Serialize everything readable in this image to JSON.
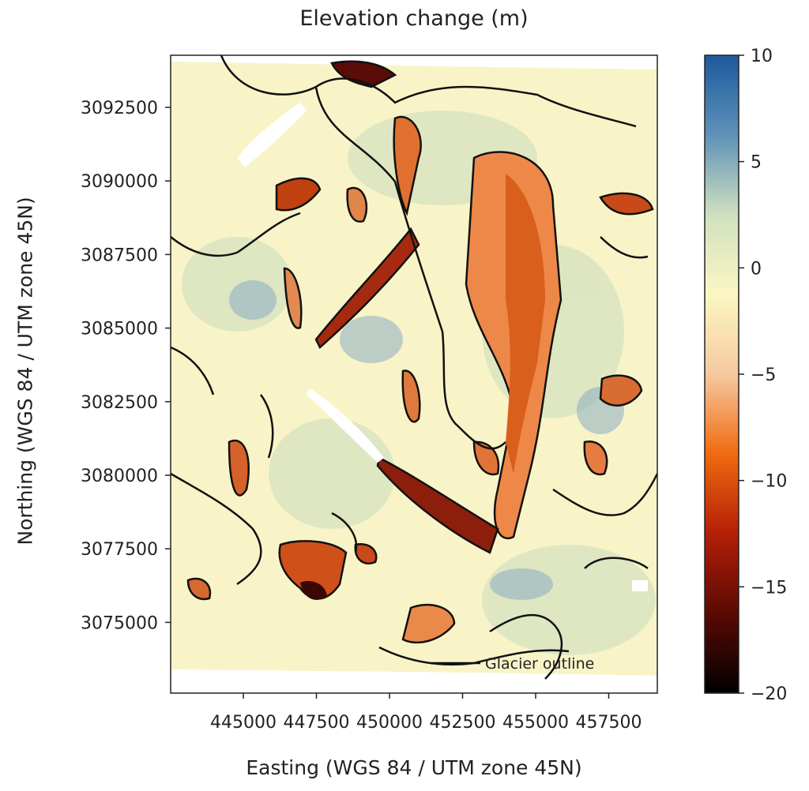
{
  "map": {
    "title": "Elevation change (m)",
    "xlabel": "Easting (WGS 84 / UTM zone 45N)",
    "ylabel": "Northing (WGS 84 / UTM zone 45N)",
    "x_ticks": [
      "445000",
      "447500",
      "450000",
      "452500",
      "455000",
      "457500"
    ],
    "y_ticks": [
      "3092500",
      "3090000",
      "3087500",
      "3085000",
      "3082500",
      "3080000",
      "3077500",
      "3075000"
    ],
    "legend_label": "Glacier outline",
    "colorbar": {
      "ticks": [
        "10",
        "5",
        "0",
        "−5",
        "−10",
        "−15",
        "−20"
      ],
      "vmin": -20,
      "vmax": 10,
      "colors": [
        "#000000",
        "#5a0a04",
        "#b41f07",
        "#f06a10",
        "#f5c9a0",
        "#fbf7c2",
        "#cfe0c0",
        "#5e92b8",
        "#1d5a9e"
      ]
    }
  }
}
